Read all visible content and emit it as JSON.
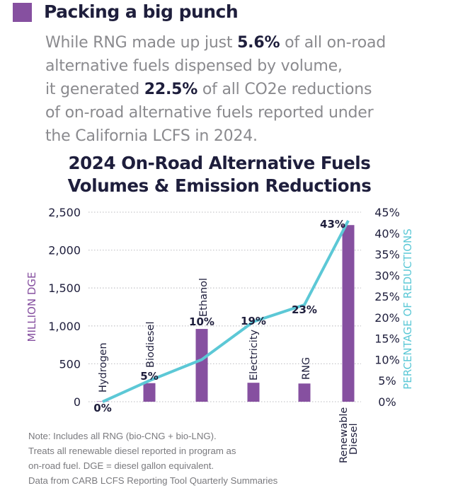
{
  "header": {
    "title": "Packing a big punch",
    "accent_color": "#8650a0"
  },
  "intro": {
    "line1_pre": "While RNG made up just ",
    "line1_bold": "5.6%",
    "line1_post": " of all on-road",
    "line2": "alternative fuels dispensed by volume,",
    "line3_pre": "it generated ",
    "line3_bold": "22.5%",
    "line3_post": " of all CO2e reductions",
    "line4": "of on-road alternative fuels reported under",
    "line5": "the California LCFS in 2024."
  },
  "chart_data": {
    "type": "bar",
    "title": "2024 On-Road Alternative Fuels Volumes & Emission Reductions",
    "title_lines": [
      "2024 On-Road Alternative Fuels",
      "Volumes & Emission Reductions"
    ],
    "categories": [
      "Hydrogen",
      "Biodiesel",
      "Ethanol",
      "Electricity",
      "RNG",
      "Renewable Diesel"
    ],
    "category_label_lines": [
      [
        "Hydrogen"
      ],
      [
        "Biodiesel"
      ],
      [
        "Ethanol"
      ],
      [
        "Electricity"
      ],
      [
        "RNG"
      ],
      [
        "Renewable",
        "Diesel"
      ]
    ],
    "series": [
      {
        "name": "Volume (Million DGE)",
        "type": "bar",
        "axis": "left",
        "color": "#8650a0",
        "values": [
          5,
          245,
          960,
          250,
          240,
          2330
        ]
      },
      {
        "name": "Percentage of Reductions",
        "type": "line",
        "axis": "right",
        "color": "#5cc8d6",
        "values": [
          0,
          5,
          10,
          19,
          23,
          43
        ],
        "data_labels": [
          "0%",
          "5%",
          "10%",
          "19%",
          "23%",
          "43%"
        ]
      }
    ],
    "ylabel": "MILLION DGE",
    "ylabel_color": "#8650a0",
    "ylim": [
      0,
      2500
    ],
    "yticks": [
      0,
      500,
      1000,
      1500,
      2000,
      2500
    ],
    "ytick_labels": [
      "0",
      "500",
      "1,000",
      "1,500",
      "2,000",
      "2,500"
    ],
    "y2label": "PERCENTAGE OF REDUCTIONS",
    "y2label_color": "#5cc8d6",
    "y2lim": [
      0,
      45
    ],
    "y2ticks": [
      0,
      5,
      10,
      15,
      20,
      25,
      30,
      35,
      40,
      45
    ],
    "y2tick_labels": [
      "0%",
      "5%",
      "10%",
      "15%",
      "20%",
      "25%",
      "30%",
      "35%",
      "40%",
      "45%"
    ],
    "grid": true,
    "grid_style": "dotted"
  },
  "note": {
    "lines": [
      "Note: Includes all RNG (bio-CNG + bio-LNG).",
      "Treats all renewable diesel reported in program as",
      "on-road fuel. DGE = diesel gallon equivalent.",
      "Data from CARB LCFS Reporting Tool Quarterly Summaries"
    ]
  }
}
